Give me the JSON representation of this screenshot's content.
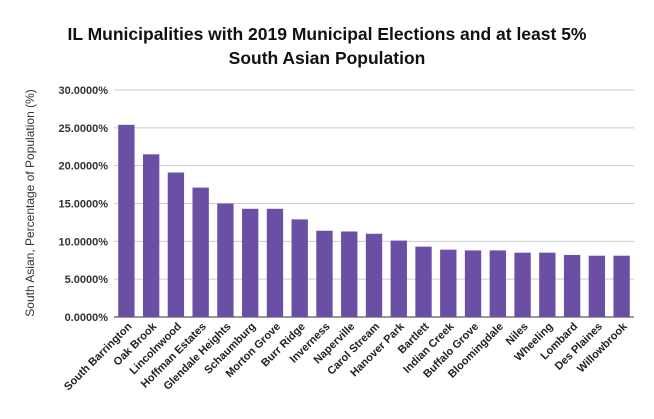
{
  "chart_data": {
    "type": "bar",
    "title_line1": "IL Municipalities with 2019 Municipal Elections and at least 5%",
    "title_line2": "South Asian Population",
    "xlabel": "",
    "ylabel": "South Asian, Percentage of Population (%)",
    "ylim": [
      0,
      30
    ],
    "yticks": [
      {
        "value": 0,
        "label": "0.0000%"
      },
      {
        "value": 5,
        "label": "5.0000%"
      },
      {
        "value": 10,
        "label": "10.0000%"
      },
      {
        "value": 15,
        "label": "15.0000%"
      },
      {
        "value": 20,
        "label": "20.0000%"
      },
      {
        "value": 25,
        "label": "25.0000%"
      },
      {
        "value": 30,
        "label": "30.0000%"
      }
    ],
    "grid": true,
    "legend": "none",
    "bar_color": "#6a4fa5",
    "categories": [
      "South Barrington",
      "Oak Brook",
      "Lincolnwood",
      "Hoffman Estates",
      "Glendale Heights",
      "Schaumburg",
      "Morton Grove",
      "Burr Ridge",
      "Inverness",
      "Naperville",
      "Carol Stream",
      "Hanover Park",
      "Bartlett",
      "Indian Creek",
      "Buffalo Grove",
      "Bloomingdale",
      "Niles",
      "Wheeling",
      "Lombard",
      "Des Plaines",
      "Willowbrook"
    ],
    "values": [
      25.4,
      21.5,
      19.1,
      17.1,
      15.0,
      14.3,
      14.3,
      12.9,
      11.4,
      11.3,
      11.0,
      10.1,
      9.3,
      8.9,
      8.8,
      8.8,
      8.5,
      8.5,
      8.2,
      8.1,
      8.1
    ]
  }
}
